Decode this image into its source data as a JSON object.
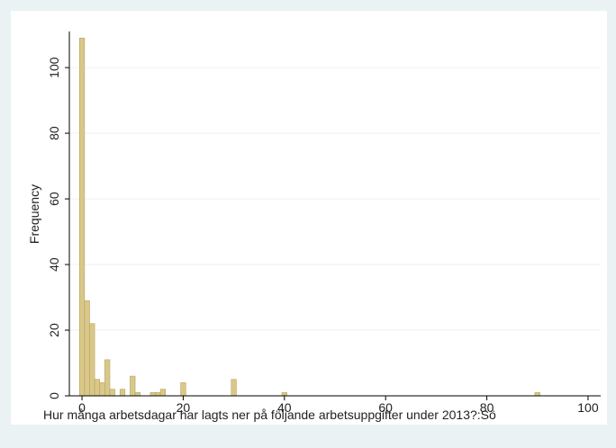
{
  "chart_data": {
    "type": "histogram",
    "xlabel": "Hur många arbetsdagar  har lagts ner på följande arbetsuppgifter under 2013?:Sö",
    "ylabel": "Frequency",
    "bins": [
      -0.5,
      0.5,
      1.5,
      2.5,
      3.5,
      4.5,
      5.5,
      6.5,
      7.5,
      8.5,
      9.5,
      10.5,
      11.5,
      12.5,
      13.5,
      14.5,
      15.5,
      16.5,
      17.5,
      18.5,
      19.5,
      20.5,
      21.5,
      22.5,
      23.5,
      24.5,
      25.5,
      26.5,
      27.5,
      28.5,
      29.5,
      30.5,
      31.5,
      32.5,
      33.5,
      34.5,
      35.5,
      36.5,
      37.5,
      38.5,
      39.5,
      40.5,
      41.5,
      42.5,
      43.5,
      44.5,
      45.5,
      46.5,
      47.5,
      48.5,
      49.5,
      50.5,
      51.5,
      52.5,
      53.5,
      54.5,
      55.5,
      56.5,
      57.5,
      58.5,
      59.5,
      60.5,
      61.5,
      62.5,
      63.5,
      64.5,
      65.5,
      66.5,
      67.5,
      68.5,
      69.5,
      70.5,
      71.5,
      72.5,
      73.5,
      74.5,
      75.5,
      76.5,
      77.5,
      78.5,
      79.5,
      80.5,
      81.5,
      82.5,
      83.5,
      84.5,
      85.5,
      86.5,
      87.5,
      88.5,
      89.5,
      90.5
    ],
    "values": [
      109,
      29,
      22,
      5,
      4,
      11,
      2,
      0,
      2,
      0,
      6,
      1,
      0,
      0,
      1,
      1,
      2,
      0,
      0,
      0,
      4,
      0,
      0,
      0,
      0,
      0,
      0,
      0,
      0,
      0,
      5,
      0,
      0,
      0,
      0,
      0,
      0,
      0,
      0,
      0,
      1,
      0,
      0,
      0,
      0,
      0,
      0,
      0,
      0,
      0,
      0,
      0,
      0,
      0,
      0,
      0,
      0,
      0,
      0,
      0,
      0,
      0,
      0,
      0,
      0,
      0,
      0,
      0,
      0,
      0,
      0,
      0,
      0,
      0,
      0,
      0,
      0,
      0,
      0,
      0,
      0,
      0,
      0,
      0,
      0,
      0,
      0,
      0,
      0,
      0,
      1
    ],
    "color": "#d9c88a",
    "xlim": [
      -2.5,
      102.5
    ],
    "ylim": [
      0,
      111
    ],
    "xticks": [
      0,
      20,
      40,
      60,
      80,
      100
    ],
    "yticks": [
      0,
      20,
      40,
      60,
      80,
      100
    ],
    "grid": true
  }
}
